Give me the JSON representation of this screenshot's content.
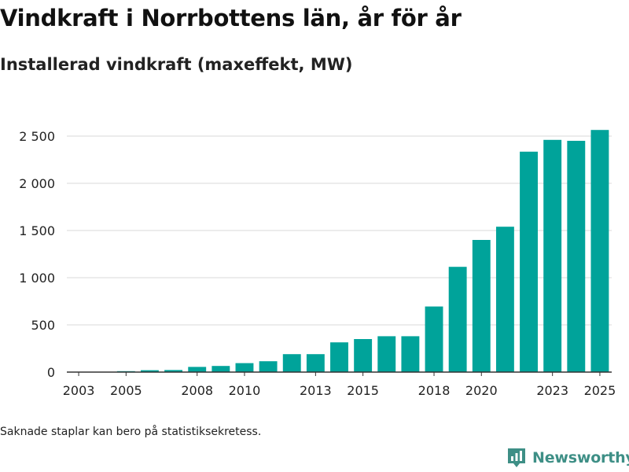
{
  "header": {
    "title": "Vindkraft i Norrbottens län, år för år",
    "subtitle": "Installerad vindkraft (maxeffekt, MW)"
  },
  "footnote": "Saknade staplar kan bero på statistiksekretess.",
  "brand": {
    "name": "Newsworthy",
    "color": "#3e8f86"
  },
  "colors": {
    "bar": "#00a39a",
    "grid": "#d9d9d9",
    "axis": "#333333"
  },
  "chart_data": {
    "type": "bar",
    "title": "Vindkraft i Norrbottens län, år för år",
    "subtitle": "Installerad vindkraft (maxeffekt, MW)",
    "xlabel": "",
    "ylabel": "",
    "categories": [
      "2003",
      "2004",
      "2005",
      "2006",
      "2007",
      "2008",
      "2009",
      "2010",
      "2011",
      "2012",
      "2013",
      "2014",
      "2015",
      "2016",
      "2017",
      "2018",
      "2019",
      "2020",
      "2021",
      "2022",
      "2023",
      "2024",
      "2025"
    ],
    "values": [
      2,
      3,
      10,
      20,
      22,
      55,
      65,
      95,
      115,
      190,
      190,
      315,
      350,
      380,
      380,
      695,
      1115,
      1400,
      1540,
      2335,
      2460,
      2450,
      2565
    ],
    "x_tick_labels": [
      "2003",
      "2005",
      "2008",
      "2010",
      "2013",
      "2015",
      "2018",
      "2020",
      "2023",
      "2025"
    ],
    "y_ticks": [
      0,
      500,
      1000,
      1500,
      2000,
      2500
    ],
    "y_tick_labels": [
      "0",
      "500",
      "1 000",
      "1 500",
      "2 000",
      "2 500"
    ],
    "ylim": [
      0,
      2650
    ],
    "grid": true,
    "legend": "none"
  }
}
